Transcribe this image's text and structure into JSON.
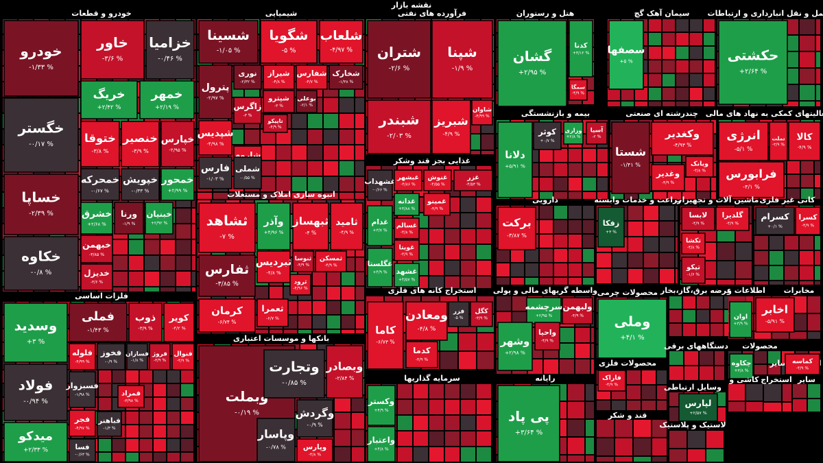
{
  "title": "نقشه بازار",
  "sectors": [
    {
      "name": "خودرو و قطعات",
      "tiles": [
        {
          "name": "خودرو",
          "change": "-۱/۳۳ %",
          "color": "#7a1425"
        },
        {
          "name": "خاور",
          "change": "-۳/۶ %",
          "color": "#c4122a"
        },
        {
          "name": "خزامیا",
          "change": "-۰/۴۶ %",
          "color": "#3b3035"
        },
        {
          "name": "خگستر",
          "change": "-۰/۱۷ %",
          "color": "#3b3035"
        },
        {
          "name": "خریگ",
          "change": "+۲/۴۲ %",
          "color": "#1f9e4a"
        },
        {
          "name": "خمهر",
          "change": "+۲/۱۹ %",
          "color": "#1f9e4a"
        },
        {
          "name": "خساپا",
          "change": "-۲/۳۹ %",
          "color": "#7a1425"
        },
        {
          "name": "خکاوه",
          "change": "-۰/۸ %",
          "color": "#3b3035"
        },
        {
          "name": "ختوقا",
          "change": "-۳/۸ %",
          "color": "#e0142a"
        },
        {
          "name": "خنصیر",
          "change": "-۳/۹ %",
          "color": "#e0142a"
        },
        {
          "name": "خپارس",
          "change": "-۲/۹۵ %",
          "color": "#c4122a"
        },
        {
          "name": "خمحرکه",
          "change": "-۰/۶۷ %",
          "color": "#3b3035"
        },
        {
          "name": "خپویش",
          "change": "-۰/۳۳ %",
          "color": "#3b3035"
        },
        {
          "name": "خمحور",
          "change": "+۲/۹۹ %",
          "color": "#1f9e4a"
        },
        {
          "name": "خشرق",
          "change": "+۲/۶۸ %",
          "color": "#1f9e4a"
        },
        {
          "name": "ورنا",
          "change": "-۱/۹ %",
          "color": "#7a1425"
        },
        {
          "name": "خبنیان",
          "change": "+۲/۹۲ %",
          "color": "#1f9e4a"
        },
        {
          "name": "خبهمن",
          "change": "-۳/۸۵ %",
          "color": "#c4122a"
        },
        {
          "name": "خدیزل",
          "change": "-۳/۶ %",
          "color": "#c4122a"
        }
      ]
    },
    {
      "name": "فلزات اساسی",
      "tiles": [
        {
          "name": "وسدید",
          "change": "+۳ %",
          "color": "#1f9e4a"
        },
        {
          "name": "فولاد",
          "change": "-۰/۹۴ %",
          "color": "#3b3035"
        },
        {
          "name": "میدکو",
          "change": "+۲/۳۳ %",
          "color": "#1f9e4a"
        },
        {
          "name": "فملی",
          "change": "-۱/۴۳ %",
          "color": "#7a1425"
        },
        {
          "name": "ذوب",
          "change": "-۳/۹ %",
          "color": "#c4122a"
        },
        {
          "name": "کویر",
          "change": "-۴/۲ %",
          "color": "#e0142a"
        },
        {
          "name": "فلوله",
          "change": "-۴/۹۹ %",
          "color": "#e0142a"
        },
        {
          "name": "فخوز",
          "change": "-۰/۹ %",
          "color": "#3b3035"
        },
        {
          "name": "فسازان",
          "change": "-۱/۸ %",
          "color": "#3b3035"
        },
        {
          "name": "فروژ",
          "change": "-۳/۹ %",
          "color": "#c4122a"
        },
        {
          "name": "فنوال",
          "change": "-۴/۹ %",
          "color": "#e0142a"
        },
        {
          "name": "فسبزوار",
          "change": "-۱/۹۸ %",
          "color": "#3b3035"
        },
        {
          "name": "فمراد",
          "change": "-۳/۹۸ %",
          "color": "#e0142a"
        },
        {
          "name": "فجر",
          "change": "-۴/۹۷ %",
          "color": "#e0142a"
        },
        {
          "name": "فباهنر",
          "change": "-۱/۳ %",
          "color": "#3b3035"
        },
        {
          "name": "فسا",
          "change": "-۰/۶۳ %",
          "color": "#3b3035"
        }
      ]
    },
    {
      "name": "شیمیایی",
      "tiles": [
        {
          "name": "شسینا",
          "change": "-۱/۰۵ %",
          "color": "#7a1425"
        },
        {
          "name": "شگویا",
          "change": "-۵ %",
          "color": "#e0142a"
        },
        {
          "name": "شلعاب",
          "change": "-۴/۹۷ %",
          "color": "#e0142a"
        },
        {
          "name": "پترول",
          "change": "-۲/۹۷ %",
          "color": "#7a1425"
        },
        {
          "name": "نوری",
          "change": "-۲/۳۲ %",
          "color": "#7a1425"
        },
        {
          "name": "شیراز",
          "change": "-۴/۸ %",
          "color": "#e0142a"
        },
        {
          "name": "شفارس",
          "change": "-۴/۷ %",
          "color": "#e0142a"
        },
        {
          "name": "شخارک",
          "change": "-۱/۳۸ %",
          "color": "#7a1425"
        },
        {
          "name": "زاگرس",
          "change": "-۳ %",
          "color": "#c4122a"
        },
        {
          "name": "شپترو",
          "change": "-۳ %",
          "color": "#c4122a"
        },
        {
          "name": "بوعلی",
          "change": "-۲/۱ %",
          "color": "#7a1425"
        },
        {
          "name": "شپدیس",
          "change": "-۴/۹۸ %",
          "color": "#e0142a"
        },
        {
          "name": "تاپیکو",
          "change": "-۴/۹ %",
          "color": "#c4122a"
        },
        {
          "name": "شاروم",
          "change": "-۴/۹ %",
          "color": "#e0142a"
        },
        {
          "name": "فارس",
          "change": "-۱/۰۳ %",
          "color": "#3b3035"
        },
        {
          "name": "شملی",
          "change": "-۰/۵۵ %",
          "color": "#3b3035"
        }
      ]
    },
    {
      "name": "انبوه سازی املاک و مستغلات",
      "tiles": [
        {
          "name": "ثشاهد",
          "change": "-۷ %",
          "color": "#e0142a"
        },
        {
          "name": "وآذر",
          "change": "+۴/۹۶ %",
          "color": "#1f9e4a"
        },
        {
          "name": "ثبهساز",
          "change": "-۴ %",
          "color": "#e0142a"
        },
        {
          "name": "ثامید",
          "change": "-۴/۹ %",
          "color": "#e0142a"
        },
        {
          "name": "ثفارس",
          "change": "-۳/۸۵ %",
          "color": "#7a1425"
        },
        {
          "name": "ثبردیس",
          "change": "-۴/۸ %",
          "color": "#e0142a"
        },
        {
          "name": "ثنوسا",
          "change": "-۴/۹ %",
          "color": "#c4122a"
        },
        {
          "name": "ثمسکن",
          "change": "-۴/۹ %",
          "color": "#e0142a"
        },
        {
          "name": "ثرود",
          "change": "-۴/۹۶ %",
          "color": "#e0142a"
        },
        {
          "name": "کرمان",
          "change": "-۶/۷۴ %",
          "color": "#e0142a"
        },
        {
          "name": "ثعمرا",
          "change": "-۶/۷ %",
          "color": "#e0142a"
        }
      ]
    },
    {
      "name": "بانکها و موسسات اعتباری",
      "tiles": [
        {
          "name": "وبملت",
          "change": "-۰/۱۹ %",
          "color": "#7a1425"
        },
        {
          "name": "وتجارت",
          "change": "-۰/۸۵ %",
          "color": "#3b3035"
        },
        {
          "name": "وبصادر",
          "change": "-۲/۸۴ %",
          "color": "#c4122a"
        },
        {
          "name": "وگردش",
          "change": "-۰/۹ %",
          "color": "#3b3035"
        },
        {
          "name": "وپاسار",
          "change": "-۰/۷۸ %",
          "color": "#3b3035"
        },
        {
          "name": "وپارس",
          "change": "-۴/۸ %",
          "color": "#e0142a"
        }
      ]
    },
    {
      "name": "فرآورده های نفتی",
      "tiles": [
        {
          "name": "شتران",
          "change": "-۲/۶ %",
          "color": "#7a1425"
        },
        {
          "name": "شپنا",
          "change": "-۱/۹ %",
          "color": "#c4122a"
        },
        {
          "name": "شبندر",
          "change": "-۲/۰۳ %",
          "color": "#c4122a"
        },
        {
          "name": "شبریز",
          "change": "-۴/۹ %",
          "color": "#e0142a"
        },
        {
          "name": "شاوان",
          "change": "-۴/۹۹ %",
          "color": "#e0142a"
        }
      ]
    },
    {
      "name": "غذایی بجز قند وشکر",
      "tiles": [
        {
          "name": "غشهداب",
          "change": "-۰/۶۶ %",
          "color": "#3b3035"
        },
        {
          "name": "غبشهر",
          "change": "-۴/۸۶ %",
          "color": "#e0142a"
        },
        {
          "name": "غنوش",
          "change": "-۴/۵۵ %",
          "color": "#e0142a"
        },
        {
          "name": "غزر",
          "change": "-۴/۵۳ %",
          "color": "#c4122a"
        },
        {
          "name": "غدانه",
          "change": "+۳/۸۸ %",
          "color": "#1f9e4a"
        },
        {
          "name": "غمینو",
          "change": "-۴/۹ %",
          "color": "#e0142a"
        },
        {
          "name": "غدام",
          "change": "+۳/۷ %",
          "color": "#1f9e4a"
        },
        {
          "name": "غسالم",
          "change": "-۴/۸ %",
          "color": "#e0142a"
        },
        {
          "name": "غویتا",
          "change": "-۴/۹ %",
          "color": "#e0142a"
        },
        {
          "name": "غگلستا",
          "change": "+۴/۹ %",
          "color": "#1f9e4a"
        },
        {
          "name": "غشهد",
          "change": "+۴/۵۷ %",
          "color": "#1f9e4a"
        }
      ]
    },
    {
      "name": "استخراج کانه های فلزی",
      "tiles": [
        {
          "name": "کاما",
          "change": "-۶/۷۳ %",
          "color": "#e0142a"
        },
        {
          "name": "ومعادن",
          "change": "-۴/۸ %",
          "color": "#e0142a"
        },
        {
          "name": "فزر",
          "change": "-۵ %",
          "color": "#3b3035"
        },
        {
          "name": "کگل",
          "change": "-۳/۹ %",
          "color": "#c4122a"
        },
        {
          "name": "کدما",
          "change": "-۴/۹ %",
          "color": "#e0142a"
        }
      ]
    },
    {
      "name": "سرمایه گذاریها",
      "tiles": [
        {
          "name": "وکستر",
          "change": "+۴/۹ %",
          "color": "#1f9e4a"
        },
        {
          "name": "واعتبار",
          "change": "+۴/۸ %",
          "color": "#1f9e4a"
        }
      ]
    },
    {
      "name": "هتل و رستوران",
      "tiles": [
        {
          "name": "گشان",
          "change": "+۲/۹۵ %",
          "color": "#1f9e4a"
        },
        {
          "name": "کدنا",
          "change": "+۳/۱۲ %",
          "color": "#1f9e4a"
        },
        {
          "name": "سمگا",
          "change": "-۴/۹ %",
          "color": "#e0142a"
        }
      ]
    },
    {
      "name": "سیمان آهک گچ",
      "tiles": [
        {
          "name": "سصفها",
          "change": "+۵ %",
          "color": "#22b35a"
        }
      ]
    },
    {
      "name": "حمل و نقل انبارداری و ارتباطات",
      "tiles": [
        {
          "name": "حکشتی",
          "change": "+۲/۶۴ %",
          "color": "#1f9e4a"
        }
      ]
    },
    {
      "name": "بیمه و بازنشستگی",
      "tiles": [
        {
          "name": "دلانا",
          "change": "+۵/۹۱ %",
          "color": "#1f9e4a"
        },
        {
          "name": "کوثر",
          "change": "+۰/۷ %",
          "color": "#3b3035"
        },
        {
          "name": "وزاری",
          "change": "+۲/۸ %",
          "color": "#1f9e4a"
        },
        {
          "name": "آسیا",
          "change": "-۲ %",
          "color": "#c4122a"
        }
      ]
    },
    {
      "name": "چندرشته ای صنعتی",
      "tiles": [
        {
          "name": "شستا",
          "change": "-۱/۴۱ %",
          "color": "#7a1425"
        },
        {
          "name": "وکغدیر",
          "change": "-۴/۹۳ %",
          "color": "#e0142a"
        },
        {
          "name": "وبانک",
          "change": "-۴/۸ %",
          "color": "#e0142a"
        },
        {
          "name": "وغدیر",
          "change": "-۴/۹ %",
          "color": "#e0142a"
        }
      ]
    },
    {
      "name": "فعالیتهای کمکی به نهاد های مالی",
      "tiles": [
        {
          "name": "انرژی",
          "change": "-۵/۱ %",
          "color": "#e0142a"
        },
        {
          "name": "تملت",
          "change": "-۳/۹ %",
          "color": "#e0142a"
        },
        {
          "name": "کالا",
          "change": "-۴/۹ %",
          "color": "#e0142a"
        },
        {
          "name": "فرابورس",
          "change": "-۴/۱ %",
          "color": "#e0142a"
        }
      ]
    },
    {
      "name": "دارویی",
      "tiles": [
        {
          "name": "برکت",
          "change": "-۳/۸۷ %",
          "color": "#e0142a"
        }
      ]
    },
    {
      "name": "زراعت و خدمات وابسته",
      "tiles": [
        {
          "name": "زفکا",
          "change": "+۳ %",
          "color": "#145a32"
        }
      ]
    },
    {
      "name": "ماشین آلات و تجهیزات",
      "tiles": [
        {
          "name": "لابسا",
          "change": "-۴/۹ %",
          "color": "#c4122a"
        },
        {
          "name": "گلدیرا",
          "change": "-۴/۹ %",
          "color": "#e0142a"
        },
        {
          "name": "تکشا",
          "change": "-۴/۸ %",
          "color": "#e0142a"
        },
        {
          "name": "تیکو",
          "change": "-۱/۶ %",
          "color": "#c4122a"
        }
      ]
    },
    {
      "name": "کانی غیر فلزی",
      "tiles": [
        {
          "name": "کسرام",
          "change": "+۰/۱ %",
          "color": "#3b3035"
        },
        {
          "name": "کسرا",
          "change": "-۴/۹ %",
          "color": "#e0142a"
        }
      ]
    },
    {
      "name": "واسطه گریهای مالی و پولی",
      "tiles": [
        {
          "name": "سرچشمه",
          "change": "+۲/۹۵ %",
          "color": "#1f9e4a"
        },
        {
          "name": "ولبهمن",
          "change": "-۴/۹ %",
          "color": "#c4122a"
        },
        {
          "name": "وشهر",
          "change": "+۲/۹۸ %",
          "color": "#1f9e4a"
        },
        {
          "name": "واحیا",
          "change": "-۴/۹ %",
          "color": "#c4122a"
        }
      ]
    },
    {
      "name": "محصولات چرمی",
      "tiles": [
        {
          "name": "وملی",
          "change": "+۴/۱ %",
          "color": "#22b35a"
        }
      ]
    },
    {
      "name": "عرضه برق،گاز،بخار",
      "tiles": []
    },
    {
      "name": "اطلاعات و",
      "tiles": [
        {
          "name": "اوان",
          "change": "+۳/۹ %",
          "color": "#1f9e4a"
        }
      ]
    },
    {
      "name": "مخابرات",
      "tiles": [
        {
          "name": "اخابر",
          "change": "-۵/۹۱ %",
          "color": "#e0142a"
        }
      ]
    },
    {
      "name": "دستگاههای برقی",
      "tiles": []
    },
    {
      "name": "محصولات",
      "tiles": [
        {
          "name": "چکاوه",
          "change": "+۳/۸ %",
          "color": "#1f9e4a"
        }
      ]
    },
    {
      "name": "استخراج سایر",
      "tiles": [
        {
          "name": "کماسه",
          "change": "-۴/۹ %",
          "color": "#e0142a"
        }
      ]
    },
    {
      "name": "محصولات فلزی",
      "tiles": [
        {
          "name": "فاراک",
          "change": "-۴/۹ %",
          "color": "#e0142a"
        }
      ]
    },
    {
      "name": "رایانه",
      "tiles": [
        {
          "name": "پی پاد",
          "change": "+۳/۶۴ %",
          "color": "#1f9e4a"
        }
      ]
    },
    {
      "name": "وسایل ارتباطی",
      "tiles": [
        {
          "name": "لپارس",
          "change": "+۲/۵۷ %",
          "color": "#145a32"
        }
      ]
    },
    {
      "name": "قند و شکر",
      "tiles": []
    },
    {
      "name": "لاستیک و پلاستیک",
      "tiles": []
    },
    {
      "name": "کاشی و",
      "tiles": []
    },
    {
      "name": "استخراج",
      "tiles": []
    },
    {
      "name": "سایر",
      "tiles": []
    }
  ]
}
